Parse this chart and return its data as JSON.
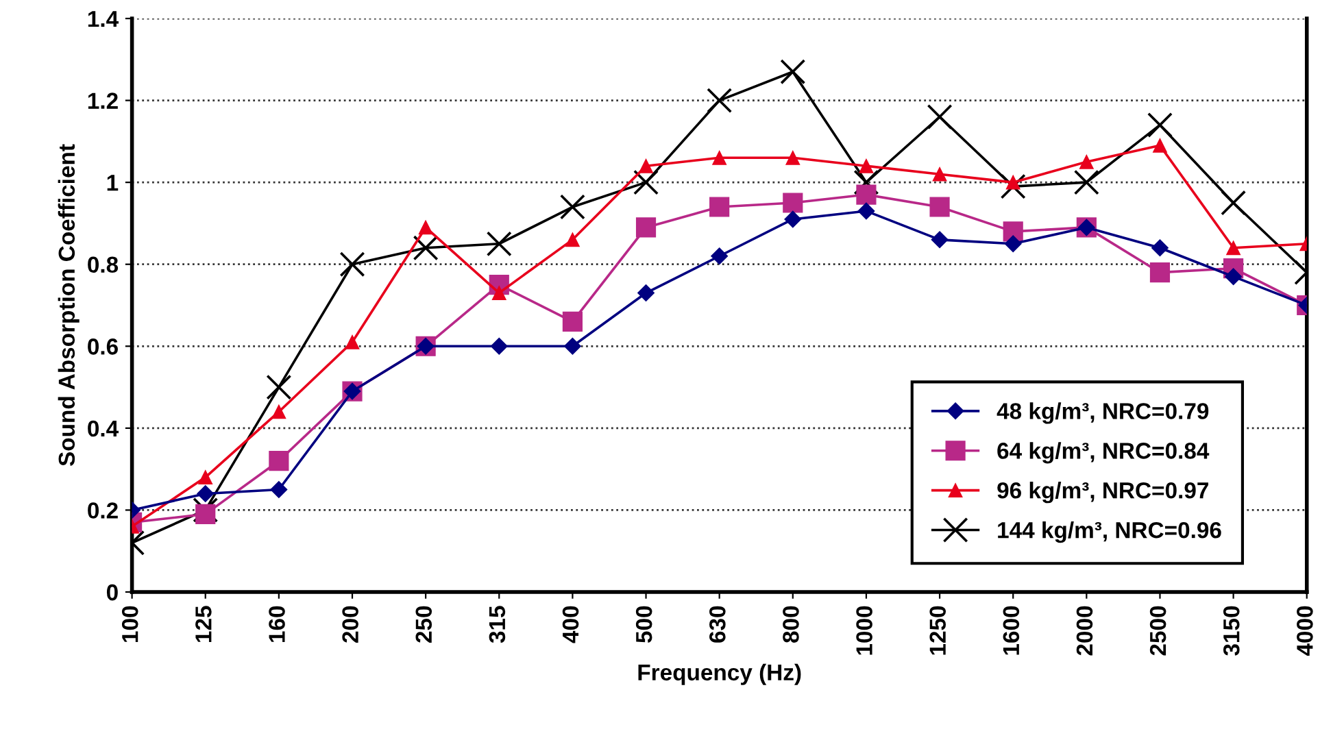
{
  "chart_data": {
    "type": "line",
    "xlabel": "Frequency (Hz)",
    "ylabel": "Sound Absorption Coefficient",
    "categories": [
      "100",
      "125",
      "160",
      "200",
      "250",
      "315",
      "400",
      "500",
      "630",
      "800",
      "1000",
      "1250",
      "1600",
      "2000",
      "2500",
      "3150",
      "4000"
    ],
    "series": [
      {
        "name": "48 kg/m³, NRC=0.79",
        "color": "#000080",
        "marker": "diamond",
        "values": [
          0.2,
          0.24,
          0.25,
          0.49,
          0.6,
          0.6,
          0.6,
          0.73,
          0.82,
          0.91,
          0.93,
          0.86,
          0.85,
          0.89,
          0.84,
          0.77,
          0.7
        ]
      },
      {
        "name": "64 kg/m³, NRC=0.84",
        "color": "#b82888",
        "marker": "square",
        "values": [
          0.17,
          0.19,
          0.32,
          0.49,
          0.6,
          0.75,
          0.66,
          0.89,
          0.94,
          0.95,
          0.97,
          0.94,
          0.88,
          0.89,
          0.78,
          0.79,
          0.7
        ]
      },
      {
        "name": "96 kg/m³, NRC=0.97",
        "color": "#e8001c",
        "marker": "triangle",
        "values": [
          0.16,
          0.28,
          0.44,
          0.61,
          0.89,
          0.73,
          0.86,
          1.04,
          1.06,
          1.06,
          1.04,
          1.02,
          1.0,
          1.05,
          1.09,
          0.84,
          0.85
        ]
      },
      {
        "name": "144 kg/m³, NRC=0.96",
        "color": "#000000",
        "marker": "cross",
        "values": [
          0.12,
          0.2,
          0.5,
          0.8,
          0.84,
          0.85,
          0.94,
          1.0,
          1.2,
          1.27,
          1.0,
          1.16,
          0.99,
          1.0,
          1.14,
          0.95,
          0.78
        ]
      }
    ],
    "ylim": [
      0,
      1.4
    ],
    "yticks": [
      0,
      0.2,
      0.4,
      0.6,
      0.8,
      1,
      1.2,
      1.4
    ],
    "grid": "y",
    "legend": "bottom right"
  }
}
